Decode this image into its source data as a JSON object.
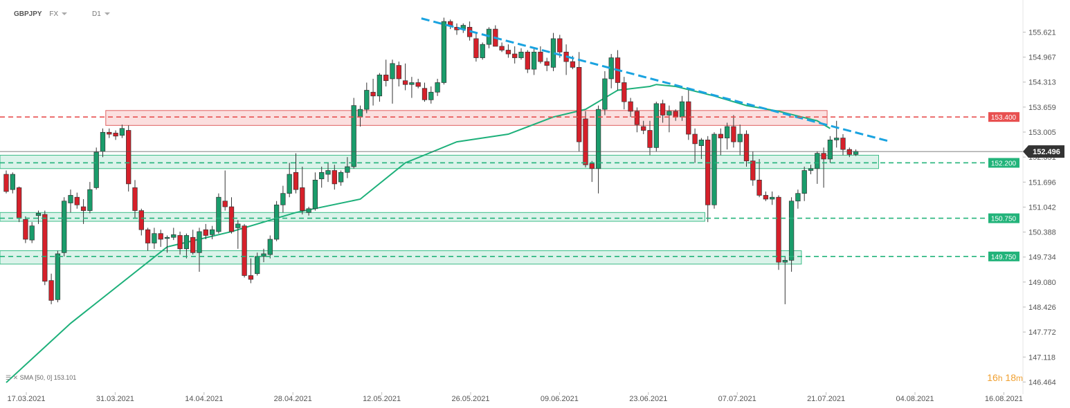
{
  "header": {
    "symbol": "GBPJPY",
    "market": "FX",
    "timeframe": "D1"
  },
  "indicator": {
    "label": "SMA",
    "params": "[50, 0]",
    "value": "153.101"
  },
  "timer": {
    "hours": "16",
    "h": "h",
    "minutes": "18",
    "m": "m"
  },
  "colors": {
    "up": "#1a9c6b",
    "down": "#d6202a",
    "sma": "#1db07a",
    "trend": "#1aa3e0",
    "resistance": "#e85050",
    "support": "#22b37a"
  },
  "chart_data": {
    "type": "candlestick",
    "y_range": [
      146.2,
      156.1
    ],
    "y_ticks": [
      "155.621",
      "154.967",
      "154.313",
      "153.659",
      "153.005",
      "152.351",
      "151.696",
      "151.042",
      "150.388",
      "149.734",
      "149.080",
      "148.426",
      "147.772",
      "147.118",
      "146.464"
    ],
    "x_labels": [
      "17.03.2021",
      "31.03.2021",
      "14.04.2021",
      "28.04.2021",
      "12.05.2021",
      "26.05.2021",
      "09.06.2021",
      "23.06.2021",
      "07.07.2021",
      "21.07.2021",
      "04.08.2021",
      "16.08.2021"
    ],
    "current_price": "152.496",
    "levels": [
      {
        "value": "153.400",
        "kind": "resistance"
      },
      {
        "value": "152.200",
        "kind": "support"
      },
      {
        "value": "150.750",
        "kind": "support"
      },
      {
        "value": "149.750",
        "kind": "support"
      }
    ],
    "zones": [
      {
        "from_bar": 16,
        "to_bar": 127,
        "low": 153.18,
        "high": 153.57,
        "kind": "resistance"
      },
      {
        "from_bar": 0,
        "to_bar": 135,
        "low": 152.05,
        "high": 152.4,
        "kind": "support"
      },
      {
        "from_bar": 0,
        "to_bar": 108,
        "low": 150.67,
        "high": 150.9,
        "kind": "support"
      },
      {
        "from_bar": 0,
        "to_bar": 123,
        "low": 149.55,
        "high": 149.9,
        "kind": "support"
      }
    ],
    "trendline": {
      "from": {
        "bar": 64.5,
        "price": 155.98
      },
      "to": {
        "bar": 137.5,
        "price": 152.75
      }
    },
    "candles": [
      [
        151.9,
        152.0,
        151.4,
        151.45
      ],
      [
        151.5,
        151.95,
        151.4,
        151.9
      ],
      [
        151.55,
        151.58,
        150.65,
        150.75
      ],
      [
        150.72,
        150.8,
        150.1,
        150.2
      ],
      [
        150.18,
        150.65,
        150.1,
        150.55
      ],
      [
        150.82,
        150.95,
        150.6,
        150.88
      ],
      [
        150.85,
        150.95,
        149.0,
        149.1
      ],
      [
        149.12,
        149.3,
        148.5,
        148.6
      ],
      [
        148.62,
        149.9,
        148.55,
        149.82
      ],
      [
        149.85,
        151.3,
        149.75,
        151.2
      ],
      [
        151.15,
        151.5,
        150.9,
        151.35
      ],
      [
        151.3,
        151.42,
        151.0,
        151.1
      ],
      [
        151.05,
        151.25,
        150.6,
        150.95
      ],
      [
        150.95,
        151.7,
        150.88,
        151.5
      ],
      [
        151.55,
        152.6,
        151.5,
        152.48
      ],
      [
        152.5,
        153.1,
        152.35,
        153.0
      ],
      [
        153.0,
        153.1,
        152.85,
        152.95
      ],
      [
        152.98,
        153.05,
        152.8,
        152.9
      ],
      [
        152.92,
        153.2,
        152.85,
        153.1
      ],
      [
        153.05,
        153.18,
        151.45,
        151.65
      ],
      [
        151.55,
        151.75,
        150.75,
        150.95
      ],
      [
        150.95,
        151.0,
        150.3,
        150.45
      ],
      [
        150.45,
        150.5,
        149.9,
        150.1
      ],
      [
        150.1,
        150.5,
        149.95,
        150.35
      ],
      [
        150.35,
        150.45,
        150.0,
        150.2
      ],
      [
        150.22,
        150.3,
        149.85,
        150.25
      ],
      [
        150.25,
        150.5,
        150.18,
        150.32
      ],
      [
        150.3,
        150.4,
        149.8,
        149.95
      ],
      [
        149.95,
        150.35,
        149.7,
        150.3
      ],
      [
        150.25,
        150.45,
        149.8,
        149.85
      ],
      [
        149.85,
        150.5,
        149.35,
        150.4
      ],
      [
        150.45,
        150.6,
        150.2,
        150.3
      ],
      [
        150.32,
        150.55,
        150.2,
        150.45
      ],
      [
        150.4,
        151.4,
        150.35,
        151.3
      ],
      [
        151.2,
        152.0,
        150.95,
        151.05
      ],
      [
        151.05,
        151.3,
        150.35,
        150.4
      ],
      [
        150.5,
        150.7,
        149.95,
        150.6
      ],
      [
        150.55,
        150.6,
        149.2,
        149.25
      ],
      [
        149.25,
        149.7,
        149.05,
        149.15
      ],
      [
        149.3,
        149.85,
        149.25,
        149.75
      ],
      [
        149.75,
        149.95,
        149.6,
        149.82
      ],
      [
        149.8,
        150.3,
        149.7,
        150.2
      ],
      [
        150.2,
        151.2,
        150.15,
        151.1
      ],
      [
        151.1,
        151.6,
        150.9,
        151.4
      ],
      [
        151.4,
        152.2,
        151.3,
        151.9
      ],
      [
        151.95,
        152.45,
        151.4,
        151.5
      ],
      [
        151.55,
        152.1,
        150.85,
        150.95
      ],
      [
        150.9,
        151.05,
        150.82,
        151.0
      ],
      [
        151.0,
        151.95,
        150.95,
        151.75
      ],
      [
        151.78,
        152.1,
        151.55,
        151.95
      ],
      [
        151.9,
        152.2,
        151.7,
        152.0
      ],
      [
        152.0,
        152.15,
        151.5,
        151.65
      ],
      [
        151.7,
        152.0,
        151.6,
        151.95
      ],
      [
        151.95,
        152.35,
        151.8,
        152.1
      ],
      [
        152.1,
        153.9,
        152.05,
        153.7
      ],
      [
        153.4,
        153.7,
        153.15,
        153.6
      ],
      [
        153.6,
        154.3,
        153.5,
        154.1
      ],
      [
        154.05,
        154.4,
        153.7,
        153.95
      ],
      [
        153.95,
        154.55,
        153.8,
        154.5
      ],
      [
        154.5,
        154.9,
        154.2,
        154.35
      ],
      [
        154.4,
        154.9,
        153.75,
        154.8
      ],
      [
        154.75,
        154.85,
        154.2,
        154.4
      ],
      [
        154.35,
        154.8,
        154.1,
        154.25
      ],
      [
        154.25,
        154.45,
        153.9,
        154.3
      ],
      [
        154.3,
        154.4,
        154.15,
        154.2
      ],
      [
        154.15,
        154.3,
        153.8,
        153.85
      ],
      [
        153.85,
        154.2,
        153.75,
        154.05
      ],
      [
        154.05,
        154.4,
        153.95,
        154.3
      ],
      [
        154.3,
        156.0,
        154.25,
        155.9
      ],
      [
        155.9,
        155.95,
        155.7,
        155.78
      ],
      [
        155.75,
        155.85,
        155.55,
        155.68
      ],
      [
        155.7,
        155.85,
        155.6,
        155.8
      ],
      [
        155.75,
        155.9,
        155.4,
        155.5
      ],
      [
        155.45,
        155.6,
        154.85,
        154.95
      ],
      [
        154.95,
        155.35,
        154.9,
        155.3
      ],
      [
        155.3,
        155.75,
        155.2,
        155.7
      ],
      [
        155.7,
        155.8,
        155.3,
        155.25
      ],
      [
        155.25,
        155.35,
        155.1,
        155.15
      ],
      [
        155.15,
        155.3,
        154.95,
        155.05
      ],
      [
        155.05,
        155.25,
        154.8,
        154.95
      ],
      [
        154.95,
        155.2,
        154.9,
        155.1
      ],
      [
        155.1,
        155.15,
        154.55,
        154.65
      ],
      [
        154.65,
        155.2,
        154.5,
        155.1
      ],
      [
        155.1,
        155.25,
        154.8,
        154.85
      ],
      [
        154.85,
        154.95,
        154.6,
        154.75
      ],
      [
        154.7,
        155.6,
        154.6,
        155.45
      ],
      [
        155.45,
        155.55,
        154.95,
        155.1
      ],
      [
        155.1,
        155.3,
        154.5,
        154.85
      ],
      [
        154.85,
        155.0,
        154.65,
        154.7
      ],
      [
        154.7,
        155.1,
        152.5,
        152.75
      ],
      [
        153.35,
        153.55,
        152.08,
        152.15
      ],
      [
        152.18,
        152.25,
        151.7,
        152.05
      ],
      [
        152.05,
        153.7,
        151.4,
        153.6
      ],
      [
        153.6,
        154.6,
        153.45,
        154.4
      ],
      [
        154.4,
        155.05,
        154.15,
        154.95
      ],
      [
        154.95,
        155.15,
        154.1,
        154.3
      ],
      [
        154.3,
        154.45,
        153.6,
        153.8
      ],
      [
        153.8,
        153.9,
        153.4,
        153.55
      ],
      [
        153.55,
        153.65,
        153.0,
        153.2
      ],
      [
        153.15,
        153.3,
        152.95,
        153.05
      ],
      [
        153.05,
        153.3,
        152.4,
        152.6
      ],
      [
        152.6,
        153.8,
        152.5,
        153.75
      ],
      [
        153.75,
        153.85,
        153.25,
        153.45
      ],
      [
        153.45,
        153.7,
        153.0,
        153.55
      ],
      [
        153.55,
        153.6,
        153.3,
        153.4
      ],
      [
        153.4,
        153.95,
        153.3,
        153.8
      ],
      [
        153.8,
        154.1,
        152.8,
        152.95
      ],
      [
        152.95,
        153.1,
        152.2,
        152.7
      ],
      [
        152.65,
        152.85,
        152.3,
        152.8
      ],
      [
        152.8,
        152.9,
        150.65,
        151.1
      ],
      [
        151.1,
        153.0,
        151.0,
        152.95
      ],
      [
        152.95,
        153.1,
        152.4,
        152.85
      ],
      [
        152.85,
        153.25,
        152.55,
        153.15
      ],
      [
        153.15,
        153.45,
        152.6,
        152.75
      ],
      [
        152.75,
        153.2,
        152.4,
        152.95
      ],
      [
        152.95,
        153.05,
        152.1,
        152.25
      ],
      [
        152.25,
        152.5,
        151.6,
        151.75
      ],
      [
        151.75,
        152.3,
        151.3,
        151.35
      ],
      [
        151.35,
        151.45,
        151.2,
        151.25
      ],
      [
        151.25,
        151.45,
        151.1,
        151.3
      ],
      [
        151.3,
        151.35,
        149.4,
        149.6
      ],
      [
        149.6,
        149.75,
        148.5,
        149.65
      ],
      [
        149.65,
        151.3,
        149.35,
        151.2
      ],
      [
        151.2,
        151.5,
        151.0,
        151.4
      ],
      [
        151.4,
        152.1,
        151.2,
        152.0
      ],
      [
        152.0,
        152.15,
        151.9,
        152.05
      ],
      [
        152.05,
        152.5,
        151.65,
        152.45
      ],
      [
        152.45,
        152.6,
        151.55,
        152.3
      ],
      [
        152.3,
        152.9,
        152.2,
        152.8
      ],
      [
        152.8,
        153.3,
        152.6,
        152.85
      ],
      [
        152.85,
        152.95,
        152.4,
        152.55
      ],
      [
        152.55,
        152.6,
        152.35,
        152.42
      ],
      [
        152.42,
        152.55,
        152.38,
        152.5
      ]
    ],
    "sma": [
      [
        0,
        146.45
      ],
      [
        10,
        148.0
      ],
      [
        25,
        150.0
      ],
      [
        35,
        150.4
      ],
      [
        45,
        150.9
      ],
      [
        55,
        151.25
      ],
      [
        62,
        152.2
      ],
      [
        70,
        152.75
      ],
      [
        78,
        152.95
      ],
      [
        85,
        153.4
      ],
      [
        90,
        153.6
      ],
      [
        95,
        154.1
      ],
      [
        100,
        154.2
      ],
      [
        101,
        154.25
      ],
      [
        104,
        154.2
      ],
      [
        110,
        153.95
      ],
      [
        115,
        153.7
      ],
      [
        120,
        153.55
      ],
      [
        126,
        153.3
      ],
      [
        128,
        153.1
      ]
    ]
  }
}
